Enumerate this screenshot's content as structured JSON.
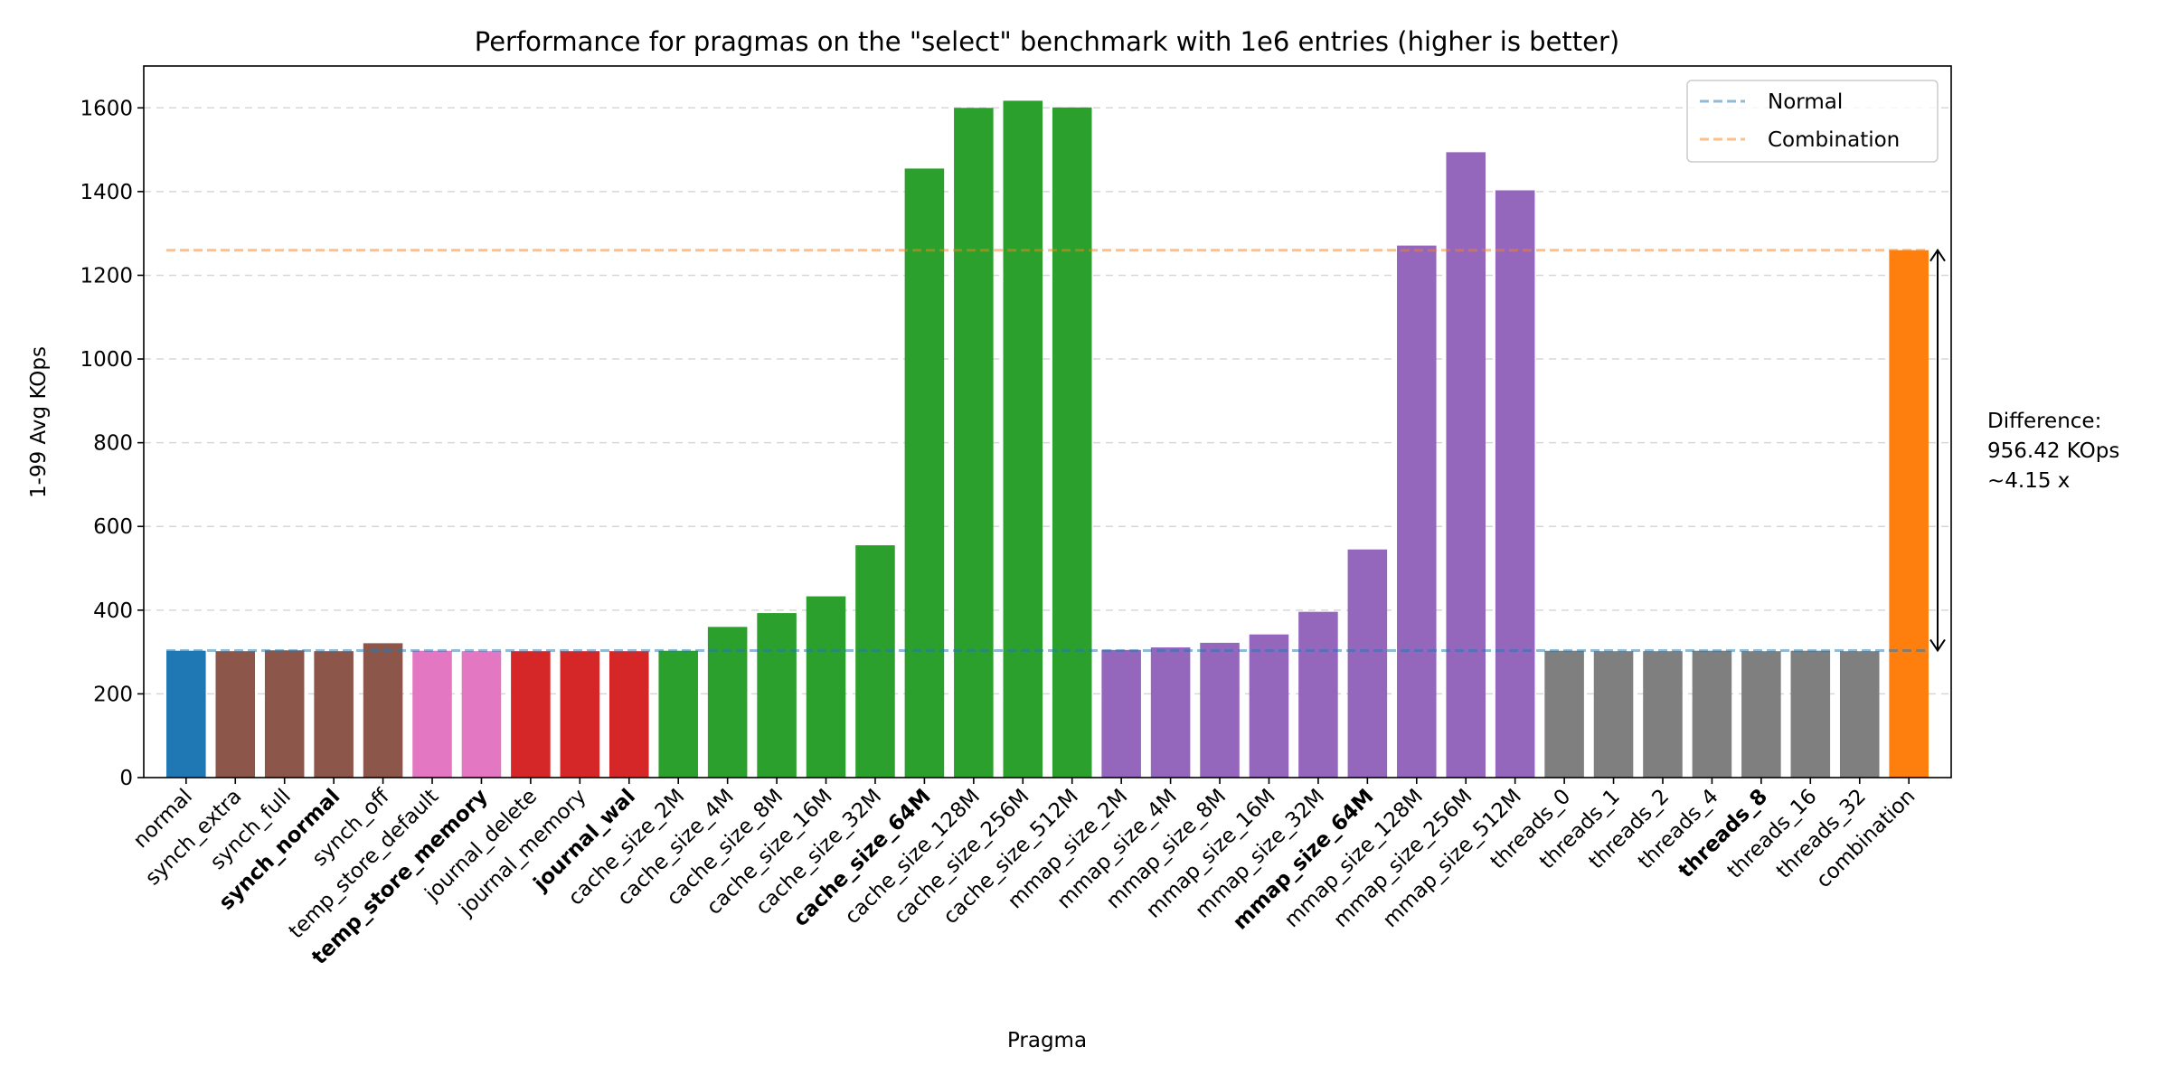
{
  "chart_data": {
    "type": "bar",
    "title": "Performance for pragmas on the \"select\" benchmark with 1e6 entries (higher is better)",
    "xlabel": "Pragma",
    "ylabel": "1-99 Avg KOps",
    "ylim": [
      0,
      1700
    ],
    "yticks": [
      0,
      200,
      400,
      600,
      800,
      1000,
      1200,
      1400,
      1600
    ],
    "grid": "y, dashed",
    "categories": [
      "normal",
      "synch_extra",
      "synch_full",
      "synch_normal",
      "synch_off",
      "temp_store_default",
      "temp_store_memory",
      "journal_delete",
      "journal_memory",
      "journal_wal",
      "cache_size_2M",
      "cache_size_4M",
      "cache_size_8M",
      "cache_size_16M",
      "cache_size_32M",
      "cache_size_64M",
      "cache_size_128M",
      "cache_size_256M",
      "cache_size_512M",
      "mmap_size_2M",
      "mmap_size_4M",
      "mmap_size_8M",
      "mmap_size_16M",
      "mmap_size_32M",
      "mmap_size_64M",
      "mmap_size_128M",
      "mmap_size_256M",
      "mmap_size_512M",
      "threads_0",
      "threads_1",
      "threads_2",
      "threads_4",
      "threads_8",
      "threads_16",
      "threads_32",
      "combination"
    ],
    "values": [
      303,
      302,
      304,
      302,
      321,
      303,
      302,
      302,
      302,
      302,
      303,
      360,
      393,
      433,
      555,
      1455,
      1600,
      1617,
      1601,
      305,
      311,
      322,
      342,
      396,
      545,
      1271,
      1494,
      1403,
      303,
      302,
      302,
      303,
      302,
      303,
      302,
      1260
    ],
    "bold": [
      "synch_normal",
      "temp_store_memory",
      "journal_wal",
      "cache_size_64M",
      "mmap_size_64M",
      "threads_8"
    ],
    "colors": [
      "#1f77b4",
      "#8c564b",
      "#8c564b",
      "#8c564b",
      "#8c564b",
      "#e377c2",
      "#e377c2",
      "#d62728",
      "#d62728",
      "#d62728",
      "#2ca02c",
      "#2ca02c",
      "#2ca02c",
      "#2ca02c",
      "#2ca02c",
      "#2ca02c",
      "#2ca02c",
      "#2ca02c",
      "#2ca02c",
      "#9467bd",
      "#9467bd",
      "#9467bd",
      "#9467bd",
      "#9467bd",
      "#9467bd",
      "#9467bd",
      "#9467bd",
      "#9467bd",
      "#7f7f7f",
      "#7f7f7f",
      "#7f7f7f",
      "#7f7f7f",
      "#7f7f7f",
      "#7f7f7f",
      "#7f7f7f",
      "#ff7f0e"
    ],
    "reference_lines": [
      {
        "name": "Normal",
        "value": 303.6,
        "color": "#1f77b4"
      },
      {
        "name": "Combination",
        "value": 1260,
        "color": "#ff7f0e"
      }
    ],
    "legend": {
      "placement": "top-right",
      "entries": [
        "Normal",
        "Combination"
      ]
    },
    "annotation": {
      "lines": [
        "Difference:",
        "956.42 KOps",
        "~4.15 x"
      ],
      "from": 303.6,
      "to": 1260
    }
  }
}
